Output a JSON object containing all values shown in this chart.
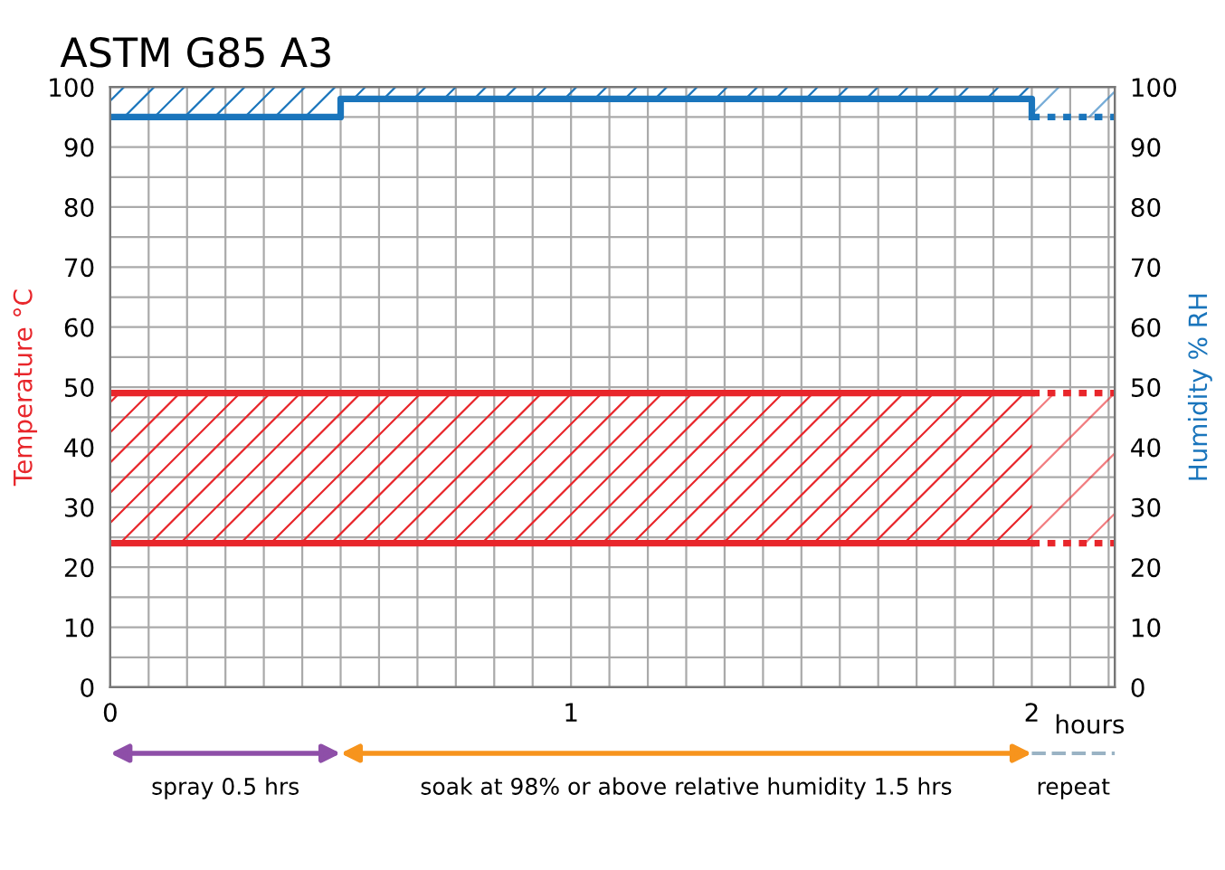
{
  "chart_data": {
    "type": "line",
    "title": "ASTM G85 A3",
    "xlabel": "hours",
    "ylabel": "Temperature °C",
    "y2label": "Humidity % RH",
    "xlim": [
      0,
      2.18
    ],
    "xticks": [
      0,
      {
        "value": 0.0833,
        "label": null
      },
      {
        "value": 0.1667,
        "label": null
      },
      {
        "value": 0.25,
        "label": null
      },
      {
        "value": 0.3333,
        "label": null
      },
      {
        "value": 0.4167,
        "label": null
      },
      {
        "value": 0.5,
        "label": null
      },
      {
        "value": 0.5833,
        "label": null
      },
      {
        "value": 0.6667,
        "label": null
      },
      {
        "value": 0.75,
        "label": null
      },
      {
        "value": 0.8333,
        "label": null
      },
      {
        "value": 0.9167,
        "label": null
      },
      1,
      {
        "value": 1.0833,
        "label": null
      },
      {
        "value": 1.1667,
        "label": null
      },
      {
        "value": 1.25,
        "label": null
      },
      {
        "value": 1.3333,
        "label": null
      },
      {
        "value": 1.4167,
        "label": null
      },
      {
        "value": 1.5,
        "label": null
      },
      {
        "value": 1.5833,
        "label": null
      },
      {
        "value": 1.6667,
        "label": null
      },
      {
        "value": 1.75,
        "label": null
      },
      {
        "value": 1.8333,
        "label": null
      },
      {
        "value": 1.9167,
        "label": null
      },
      2,
      {
        "value": 2.0833,
        "label": null
      },
      {
        "value": 2.1667,
        "label": null
      }
    ],
    "ylim": [
      0,
      100
    ],
    "yticks": [
      0,
      {
        "value": 5,
        "label": null
      },
      10,
      {
        "value": 15,
        "label": null
      },
      20,
      {
        "value": 25,
        "label": null
      },
      30,
      {
        "value": 35,
        "label": null
      },
      40,
      {
        "value": 45,
        "label": null
      },
      50,
      {
        "value": 55,
        "label": null
      },
      60,
      {
        "value": 65,
        "label": null
      },
      70,
      {
        "value": 75,
        "label": null
      },
      80,
      {
        "value": 85,
        "label": null
      },
      90,
      {
        "value": 95,
        "label": null
      },
      100
    ],
    "y2lim": [
      0,
      100
    ],
    "y2ticks": [
      0,
      10,
      20,
      30,
      40,
      50,
      60,
      70,
      80,
      90,
      100
    ],
    "grid": true,
    "legend": false,
    "marker": "none",
    "series": [
      {
        "color": "#e8262b",
        "x": [
          0,
          2
        ],
        "values": [
          49,
          49
        ],
        "lower": [
          24,
          24
        ],
        "upper": [
          49,
          49
        ],
        "line_style": "solid"
      },
      {
        "color": "#e8262b",
        "x": [
          2,
          2.18
        ],
        "values": [
          49,
          49
        ],
        "lower": [
          24,
          24
        ],
        "upper": [
          49,
          49
        ],
        "line_style": "dotted"
      },
      {
        "color": "#e8262b",
        "x": [
          0,
          2
        ],
        "values": [
          24,
          24
        ],
        "line_style": "solid"
      },
      {
        "color": "#e8262b",
        "x": [
          2,
          2.18
        ],
        "values": [
          24,
          24
        ],
        "line_style": "dotted"
      },
      {
        "type": "step",
        "axis": "y2",
        "color": "#1a75bc",
        "x": [
          0,
          0.5,
          2,
          2
        ],
        "values": [
          95,
          98,
          98,
          95
        ],
        "lower": [
          95,
          98,
          98,
          95
        ],
        "upper": [
          100,
          100,
          100,
          100
        ],
        "line_style": "solid"
      },
      {
        "axis": "y2",
        "color": "#1a75bc",
        "x": [
          2,
          2.18
        ],
        "values": [
          95,
          95
        ],
        "lower": [
          95,
          95
        ],
        "upper": [
          100,
          100
        ],
        "line_style": "dotted"
      }
    ],
    "annotations": [
      "spray 0.5 hrs",
      "soak at 98% or above relative humidity 1.5 hrs",
      "repeat"
    ]
  }
}
